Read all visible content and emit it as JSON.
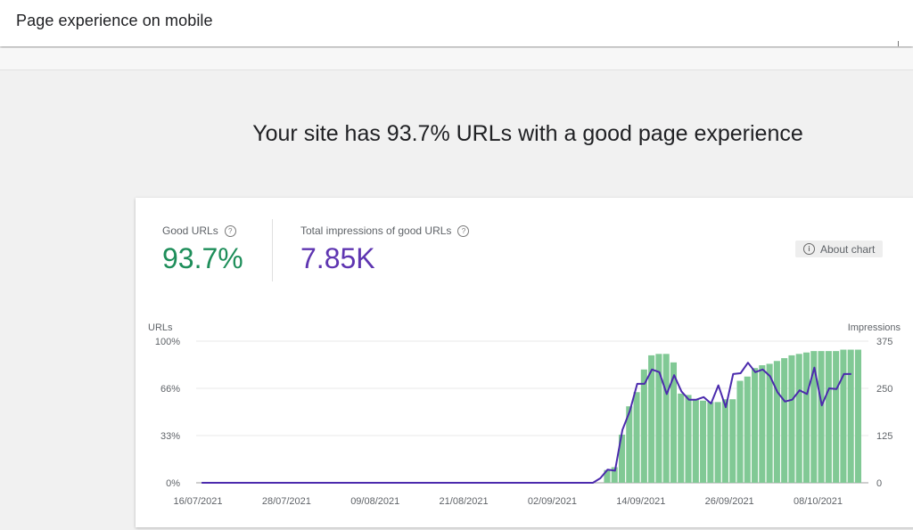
{
  "header": {
    "title": "Page experience on mobile"
  },
  "headline": "Your site has 93.7% URLs with a good page experience",
  "metrics": {
    "good_urls": {
      "label": "Good URLs",
      "value": "93.7%"
    },
    "impressions": {
      "label": "Total impressions of good URLs",
      "value": "7.85K"
    }
  },
  "about_chart": {
    "label": "About chart",
    "icon": "info-icon"
  },
  "icons": {
    "help": "help-icon"
  },
  "colors": {
    "good": "#1e8e5a",
    "impressions": "#5e35b1",
    "bar": "#81c995",
    "line": "#4b2aad"
  },
  "chart_data": {
    "type": "bar",
    "left_axis_title": "URLs",
    "right_axis_title": "Impressions",
    "y_left_ticks": [
      "0%",
      "33%",
      "66%",
      "100%"
    ],
    "y_left_ylim": [
      0,
      100
    ],
    "y_right_ticks": [
      "0",
      "125",
      "250",
      "375"
    ],
    "y_right_ylim": [
      0,
      375
    ],
    "x_start_date": "16/07/2021",
    "x_tick_labels": [
      "16/07/2021",
      "28/07/2021",
      "09/08/2021",
      "21/08/2021",
      "02/09/2021",
      "14/09/2021",
      "26/09/2021",
      "08/10/2021"
    ],
    "grid": true,
    "series": [
      {
        "name": "Good URLs",
        "kind": "bar",
        "axis": "left",
        "x": [
          "09/09/2021",
          "10/09/2021",
          "11/09/2021",
          "12/09/2021",
          "13/09/2021",
          "14/09/2021",
          "15/09/2021",
          "16/09/2021",
          "17/09/2021",
          "18/09/2021",
          "19/09/2021",
          "20/09/2021",
          "21/09/2021",
          "22/09/2021",
          "23/09/2021",
          "24/09/2021",
          "25/09/2021",
          "26/09/2021",
          "27/09/2021",
          "28/09/2021",
          "29/09/2021",
          "30/09/2021",
          "01/10/2021",
          "02/10/2021",
          "03/10/2021",
          "04/10/2021",
          "05/10/2021",
          "06/10/2021",
          "07/10/2021",
          "08/10/2021",
          "09/10/2021",
          "10/10/2021",
          "11/10/2021",
          "12/10/2021",
          "13/10/2021"
        ],
        "y": [
          9,
          11,
          34,
          54,
          64,
          80,
          90,
          91,
          91,
          85,
          63,
          62,
          59,
          58,
          57,
          57,
          59,
          59,
          72,
          75,
          81,
          83,
          84,
          86,
          88,
          90,
          91,
          92,
          93,
          93,
          93,
          93,
          94,
          94,
          94
        ]
      },
      {
        "name": "Impressions",
        "kind": "line",
        "axis": "right",
        "x": [
          "16/07/2021",
          "07/09/2021",
          "08/09/2021",
          "09/09/2021",
          "10/09/2021",
          "11/09/2021",
          "12/09/2021",
          "13/09/2021",
          "14/09/2021",
          "15/09/2021",
          "16/09/2021",
          "17/09/2021",
          "18/09/2021",
          "19/09/2021",
          "20/09/2021",
          "21/09/2021",
          "22/09/2021",
          "23/09/2021",
          "24/09/2021",
          "25/09/2021",
          "26/09/2021",
          "27/09/2021",
          "28/09/2021",
          "29/09/2021",
          "30/09/2021",
          "01/10/2021",
          "02/10/2021",
          "03/10/2021",
          "04/10/2021",
          "05/10/2021",
          "06/10/2021",
          "07/10/2021",
          "08/10/2021",
          "09/10/2021",
          "10/10/2021",
          "11/10/2021",
          "12/10/2021"
        ],
        "y": [
          0,
          0,
          12,
          35,
          32,
          140,
          190,
          262,
          262,
          300,
          293,
          235,
          285,
          242,
          220,
          220,
          227,
          210,
          258,
          200,
          288,
          290,
          318,
          293,
          300,
          282,
          240,
          215,
          220,
          245,
          235,
          305,
          205,
          250,
          248,
          288,
          288
        ]
      }
    ]
  }
}
